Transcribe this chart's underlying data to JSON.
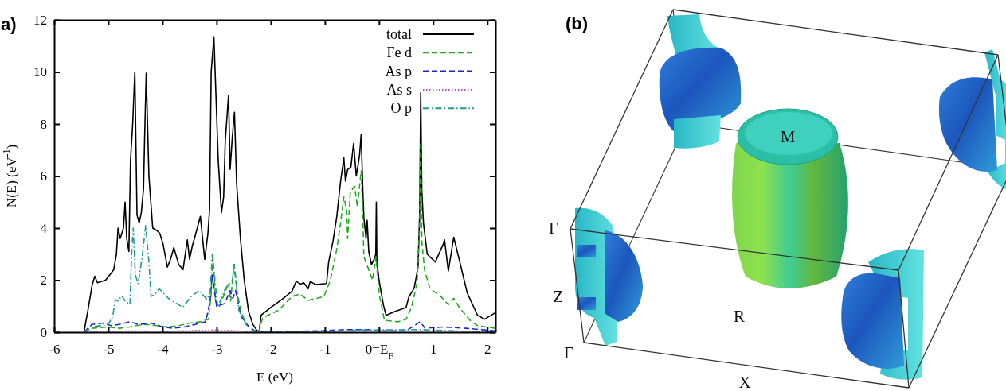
{
  "chart_data": [
    {
      "type": "line",
      "title": "a)",
      "xlabel": "E (eV)",
      "ylabel": "N(E) (eV$^{-1}$)",
      "xlim": [
        -6,
        2.15
      ],
      "ylim": [
        0,
        12
      ],
      "xticks": [
        -6,
        -5,
        -4,
        -3,
        -2,
        -1,
        {
          "value": 0,
          "label": "0=E$_{F}$"
        },
        1,
        2
      ],
      "yticks": [
        0,
        2,
        4,
        6,
        8,
        10,
        12
      ],
      "legend": "top right",
      "series": [
        {
          "name": "total",
          "color": "#000000",
          "line_style": "solid",
          "x": [
            -5.45,
            -5.38,
            -5.3,
            -5.25,
            -5.2,
            -5.05,
            -4.9,
            -4.85,
            -4.82,
            -4.78,
            -4.72,
            -4.69,
            -4.66,
            -4.62,
            -4.59,
            -4.55,
            -4.51,
            -4.47,
            -4.43,
            -4.39,
            -4.35,
            -4.33,
            -4.3,
            -4.25,
            -4.18,
            -4.1,
            -4.05,
            -3.99,
            -3.91,
            -3.85,
            -3.79,
            -3.7,
            -3.62,
            -3.54,
            -3.5,
            -3.45,
            -3.37,
            -3.3,
            -3.22,
            -3.16,
            -3.13,
            -3.1,
            -3.05,
            -2.97,
            -2.91,
            -2.87,
            -2.84,
            -2.78,
            -2.75,
            -2.71,
            -2.67,
            -2.63,
            -2.56,
            -2.49,
            -2.41,
            -2.33,
            -2.25,
            -2.21,
            -2.18,
            -2.0,
            -1.8,
            -1.61,
            -1.53,
            -1.45,
            -1.39,
            -1.31,
            -1.27,
            -1.17,
            -0.97,
            -0.93,
            -0.85,
            -0.78,
            -0.71,
            -0.65,
            -0.62,
            -0.58,
            -0.52,
            -0.47,
            -0.42,
            -0.36,
            -0.33,
            -0.3,
            -0.28,
            -0.24,
            -0.22,
            -0.19,
            -0.14,
            -0.09,
            -0.06,
            -0.05,
            -0.04,
            0.0,
            0.08,
            0.13,
            0.3,
            0.5,
            0.55,
            0.65,
            0.72,
            0.75,
            0.77,
            0.79,
            0.82,
            0.89,
            1.04,
            1.19,
            1.21,
            1.28,
            1.38,
            1.48,
            1.63,
            1.82,
            1.95,
            2.15
          ],
          "values": [
            0,
            0.8,
            1.8,
            2.15,
            1.9,
            2.0,
            2.4,
            3.0,
            4.0,
            3.6,
            4.0,
            5.0,
            3.6,
            3.1,
            6.6,
            8.0,
            10.0,
            4.5,
            4.2,
            4.6,
            5.5,
            7.4,
            9.95,
            6.0,
            4.0,
            3.9,
            3.8,
            3.4,
            2.5,
            2.8,
            3.25,
            2.6,
            2.4,
            3.55,
            2.8,
            3.3,
            3.9,
            4.45,
            2.8,
            3.8,
            4.7,
            10.0,
            11.35,
            6.6,
            4.6,
            5.2,
            7.35,
            9.1,
            6.25,
            7.5,
            8.45,
            5.7,
            3.6,
            2.0,
            0.8,
            0.3,
            0.05,
            0.05,
            0.65,
            0.95,
            1.25,
            1.57,
            1.95,
            1.85,
            1.9,
            1.67,
            1.95,
            1.83,
            1.87,
            2.7,
            3.5,
            4.45,
            5.8,
            6.7,
            5.8,
            6.25,
            6.35,
            7.25,
            6.0,
            6.8,
            7.6,
            5.5,
            4.4,
            3.6,
            4.3,
            3.1,
            2.6,
            2.8,
            3.0,
            5.0,
            2.7,
            2.0,
            1.05,
            0.65,
            0.8,
            0.95,
            1.35,
            1.7,
            2.5,
            4.5,
            9.2,
            5.5,
            4.2,
            3.0,
            2.7,
            3.4,
            3.55,
            2.35,
            3.65,
            2.8,
            1.5,
            0.65,
            0.5,
            0.75
          ]
        },
        {
          "name": "Fe d",
          "color": "#22aa22",
          "line_style": "dashed",
          "x": [
            -5.45,
            -5.3,
            -5.0,
            -4.8,
            -4.6,
            -4.5,
            -4.3,
            -4.1,
            -3.9,
            -3.7,
            -3.5,
            -3.3,
            -3.15,
            -3.1,
            -3.07,
            -3.02,
            -2.95,
            -2.85,
            -2.78,
            -2.74,
            -2.68,
            -2.62,
            -2.55,
            -2.45,
            -2.3,
            -2.22,
            -2.15,
            -1.85,
            -1.61,
            -1.46,
            -1.31,
            -1.02,
            -0.9,
            -0.78,
            -0.71,
            -0.65,
            -0.6,
            -0.58,
            -0.53,
            -0.45,
            -0.4,
            -0.33,
            -0.3,
            -0.28,
            -0.19,
            -0.12,
            -0.06,
            0.01,
            0.1,
            0.35,
            0.5,
            0.6,
            0.7,
            0.75,
            0.77,
            0.79,
            0.84,
            0.94,
            1.13,
            1.28,
            1.38,
            1.48,
            1.68,
            1.82,
            2.15
          ],
          "values": [
            0,
            0.15,
            0.2,
            0.15,
            0.2,
            0.25,
            0.3,
            0.25,
            0.2,
            0.25,
            0.35,
            0.4,
            0.5,
            1.5,
            3.0,
            1.2,
            1.0,
            1.5,
            1.9,
            1.2,
            2.6,
            1.5,
            0.8,
            0.3,
            0.05,
            0,
            0.55,
            0.85,
            1.37,
            1.47,
            1.22,
            1.37,
            1.98,
            3.2,
            4.2,
            5.2,
            4.7,
            3.6,
            5.4,
            5.6,
            4.8,
            6.2,
            4.5,
            2.9,
            2.4,
            2.0,
            2.9,
            1.37,
            0.46,
            0.4,
            0.5,
            0.96,
            1.87,
            4.0,
            7.3,
            3.5,
            2.4,
            1.67,
            1.4,
            1.06,
            1.3,
            0.96,
            0.46,
            0.25,
            0.15
          ]
        },
        {
          "name": "As p",
          "color": "#2222cc",
          "line_style": "dashed",
          "x": [
            -5.45,
            -5.3,
            -5.1,
            -4.95,
            -4.8,
            -4.6,
            -4.45,
            -4.2,
            -4.0,
            -3.8,
            -3.6,
            -3.4,
            -3.2,
            -3.12,
            -3.08,
            -3.0,
            -2.85,
            -2.75,
            -2.7,
            -2.65,
            -2.55,
            -2.4,
            -2.25,
            -1.5,
            -1.0,
            -0.6,
            -0.2,
            0.0,
            0.5,
            0.76,
            0.85,
            1.2,
            1.6,
            2.15
          ],
          "values": [
            0,
            0.3,
            0.35,
            0.25,
            0.3,
            0.4,
            0.3,
            0.35,
            0.2,
            0.15,
            0.2,
            0.3,
            0.4,
            1.2,
            2.2,
            1.0,
            1.1,
            1.6,
            1.3,
            1.6,
            0.6,
            0.2,
            0,
            0.03,
            0.06,
            0.1,
            0.1,
            0.05,
            0.05,
            0.4,
            0.15,
            0.2,
            0.15,
            0.05
          ]
        },
        {
          "name": "As s",
          "color": "#cc44cc",
          "line_style": "dotted",
          "x": [
            -5.45,
            -5.0,
            -4.5,
            -4.0,
            -3.1,
            -2.7,
            -2.25,
            -1.0,
            -0.4,
            0.77,
            1.5,
            2.15
          ],
          "values": [
            0,
            0.03,
            0.05,
            0.03,
            0.08,
            0.06,
            0,
            0.02,
            0.05,
            0.05,
            0.03,
            0.02
          ]
        },
        {
          "name": "O p",
          "color": "#229999",
          "line_style": "dashdot",
          "x": [
            -5.45,
            -5.3,
            -5.0,
            -4.92,
            -4.87,
            -4.82,
            -4.75,
            -4.69,
            -4.6,
            -4.57,
            -4.54,
            -4.5,
            -4.45,
            -4.38,
            -4.31,
            -4.25,
            -4.21,
            -4.12,
            -4.06,
            -3.87,
            -3.62,
            -3.47,
            -3.32,
            -3.18,
            -3.12,
            -3.08,
            -2.98,
            -2.84,
            -2.71,
            -2.67,
            -2.59,
            -2.44,
            -2.3,
            -2.22,
            -1.0,
            -0.4,
            0.77,
            1.5,
            2.15
          ],
          "values": [
            0,
            0.2,
            0.3,
            0.6,
            1.25,
            1.2,
            1.4,
            1.2,
            1.06,
            3.0,
            4.0,
            2.2,
            1.87,
            2.8,
            4.1,
            2.7,
            1.37,
            1.5,
            1.67,
            1.26,
            0.96,
            1.37,
            1.6,
            1.26,
            1.5,
            3.0,
            0.96,
            1.67,
            2.0,
            2.6,
            0.85,
            0.25,
            0.05,
            0,
            0.03,
            0.08,
            0.1,
            0.04,
            0.02
          ]
        }
      ]
    },
    {
      "type": "other",
      "title": "(b)",
      "annotations": [
        "M",
        "Γ",
        "Z",
        "R",
        "Γ",
        "X"
      ]
    }
  ]
}
